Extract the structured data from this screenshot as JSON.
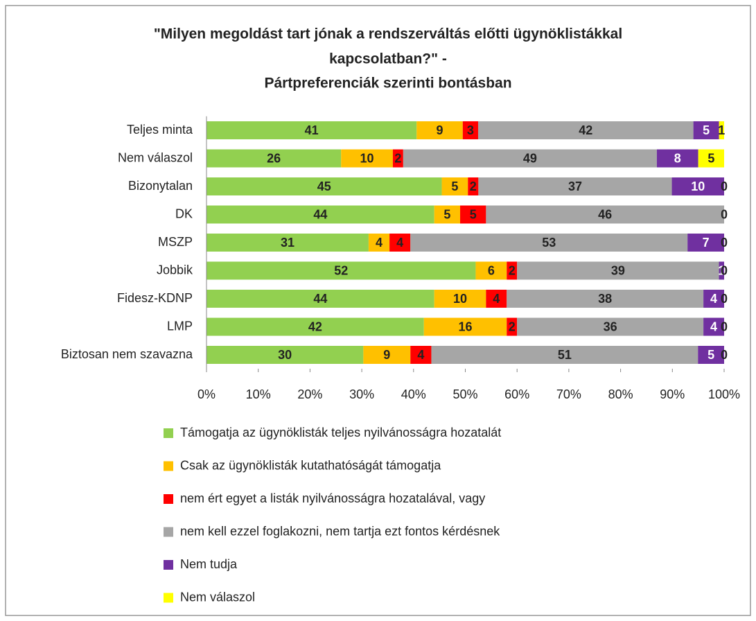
{
  "chart_data": {
    "type": "stacked_bar_100",
    "title": [
      "\"Milyen megoldást tart jónak a rendszerváltás előtti ügynöklistákkal",
      "kapcsolatban?\" -",
      "Pártpreferenciák szerinti bontásban"
    ],
    "categories": [
      "Teljes minta",
      "Nem válaszol",
      "Bizonytalan",
      "DK",
      "MSZP",
      "Jobbik",
      "Fidesz-KDNP",
      "LMP",
      "Biztosan nem szavazna"
    ],
    "series": [
      {
        "name": "Támogatja az ügynöklisták teljes nyilvánosságra hozatalát",
        "color": "#92d050",
        "values": [
          41,
          26,
          45,
          44,
          31,
          52,
          44,
          42,
          30
        ]
      },
      {
        "name": "Csak az ügynöklisták kutathatóságát támogatja",
        "color": "#ffc000",
        "values": [
          9,
          10,
          5,
          5,
          4,
          6,
          10,
          16,
          9
        ]
      },
      {
        "name": "nem ért egyet a listák nyilvánosságra hozatalával, vagy",
        "color": "#ff0000",
        "values": [
          3,
          2,
          2,
          5,
          4,
          2,
          4,
          2,
          4
        ]
      },
      {
        "name": "nem kell ezzel foglakozni, nem tartja ezt fontos kérdésnek",
        "color": "#a6a6a6",
        "values": [
          42,
          49,
          37,
          46,
          53,
          39,
          38,
          36,
          51
        ]
      },
      {
        "name": "Nem tudja",
        "color": "#7030a0",
        "values": [
          5,
          8,
          10,
          0,
          7,
          1,
          4,
          4,
          5
        ]
      },
      {
        "name": "Nem válaszol",
        "color": "#ffff00",
        "values": [
          1,
          5,
          0,
          0,
          0,
          0,
          0,
          0,
          0
        ]
      }
    ],
    "xlim": [
      0,
      100
    ],
    "xticks": [
      {
        "value": 0,
        "label": "0%"
      },
      {
        "value": 10,
        "label": "10%"
      },
      {
        "value": 20,
        "label": "20%"
      },
      {
        "value": 30,
        "label": "30%"
      },
      {
        "value": 40,
        "label": "40%"
      },
      {
        "value": 50,
        "label": "50%"
      },
      {
        "value": 60,
        "label": "60%"
      },
      {
        "value": 70,
        "label": "70%"
      },
      {
        "value": 80,
        "label": "80%"
      },
      {
        "value": 90,
        "label": "90%"
      },
      {
        "value": 100,
        "label": "100%"
      }
    ],
    "grid": false,
    "legend": "bottom"
  }
}
